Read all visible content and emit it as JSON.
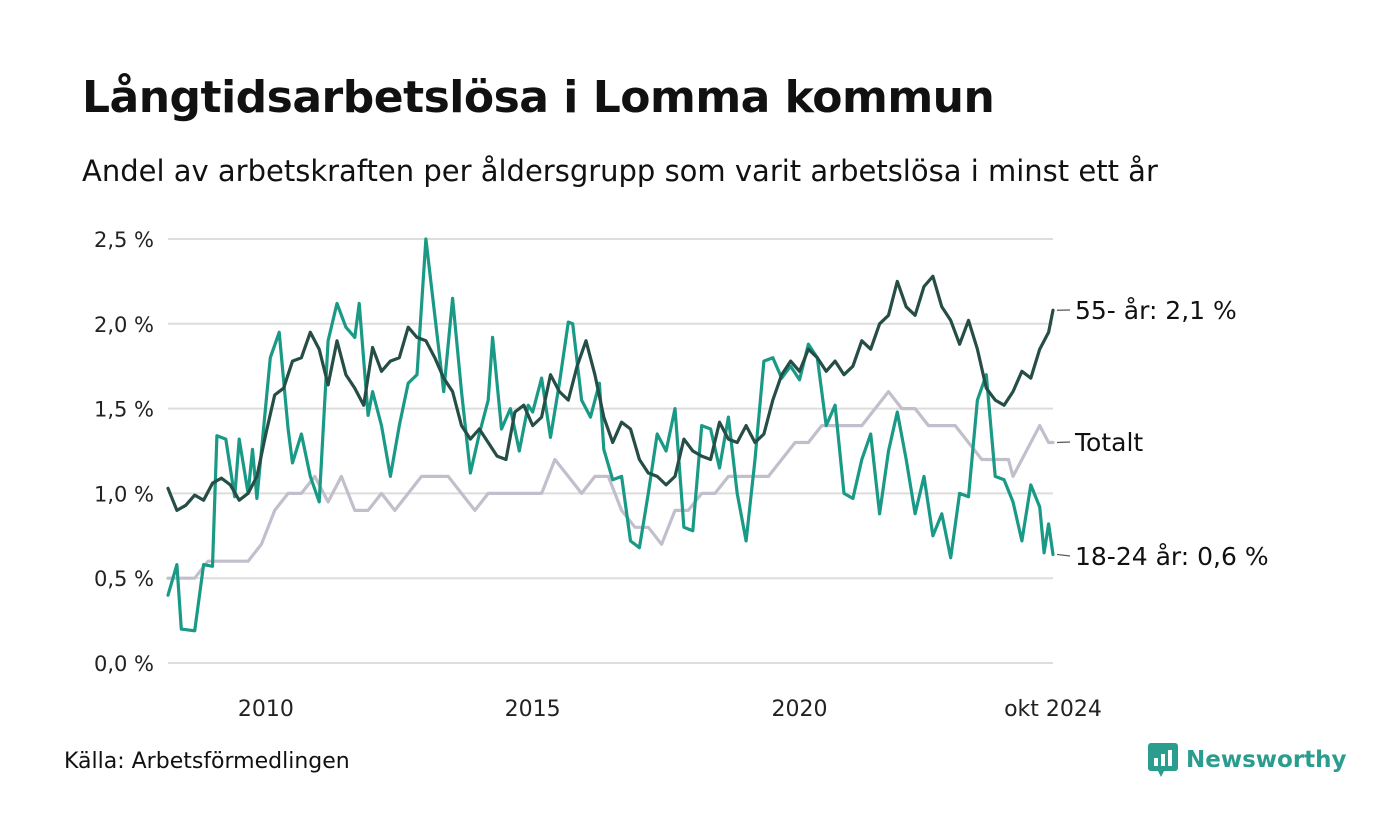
{
  "title": "Långtidsarbetslösa i Lomma kommun",
  "subtitle": "Andel av arbetskraften per åldersgrupp som varit arbetslösa i minst ett år",
  "source": "Källa: Arbetsförmedlingen",
  "brand": "Newsworthy",
  "colors": {
    "s55": "#264d46",
    "s1824": "#1a9a86",
    "total": "#c2bfcc",
    "brand": "#2a9d8f",
    "grid": "#dddddd"
  },
  "chart_data": {
    "type": "line",
    "x_start": "2008-03",
    "x_end": "2024-10",
    "ylim": [
      0,
      2.5
    ],
    "y_ticks": [
      {
        "value": 0.0,
        "label": "0,0 %"
      },
      {
        "value": 0.5,
        "label": "0,5 %"
      },
      {
        "value": 1.0,
        "label": "1,0 %"
      },
      {
        "value": 1.5,
        "label": "1,5 %"
      },
      {
        "value": 2.0,
        "label": "2,0 %"
      },
      {
        "value": 2.5,
        "label": "2,5 %"
      }
    ],
    "x_ticks": [
      {
        "date": "2010-01",
        "label": "2010"
      },
      {
        "date": "2015-01",
        "label": "2015"
      },
      {
        "date": "2020-01",
        "label": "2020"
      },
      {
        "date": "2024-10",
        "label": "okt 2024"
      }
    ],
    "grid": true,
    "series": [
      {
        "key": "s55",
        "end_label": "55- år: 2,1 %",
        "points": [
          [
            "2008-03",
            1.03
          ],
          [
            "2008-05",
            0.9
          ],
          [
            "2008-07",
            0.93
          ],
          [
            "2008-09",
            0.99
          ],
          [
            "2008-11",
            0.96
          ],
          [
            "2009-01",
            1.06
          ],
          [
            "2009-03",
            1.09
          ],
          [
            "2009-05",
            1.05
          ],
          [
            "2009-07",
            0.96
          ],
          [
            "2009-09",
            1.0
          ],
          [
            "2009-11",
            1.1
          ],
          [
            "2010-01",
            1.35
          ],
          [
            "2010-03",
            1.58
          ],
          [
            "2010-05",
            1.62
          ],
          [
            "2010-07",
            1.78
          ],
          [
            "2010-09",
            1.8
          ],
          [
            "2010-11",
            1.95
          ],
          [
            "2011-01",
            1.85
          ],
          [
            "2011-03",
            1.64
          ],
          [
            "2011-05",
            1.9
          ],
          [
            "2011-07",
            1.7
          ],
          [
            "2011-09",
            1.62
          ],
          [
            "2011-11",
            1.52
          ],
          [
            "2012-01",
            1.86
          ],
          [
            "2012-03",
            1.72
          ],
          [
            "2012-05",
            1.78
          ],
          [
            "2012-07",
            1.8
          ],
          [
            "2012-09",
            1.98
          ],
          [
            "2012-11",
            1.92
          ],
          [
            "2013-01",
            1.9
          ],
          [
            "2013-03",
            1.8
          ],
          [
            "2013-05",
            1.68
          ],
          [
            "2013-07",
            1.6
          ],
          [
            "2013-09",
            1.4
          ],
          [
            "2013-11",
            1.32
          ],
          [
            "2014-01",
            1.38
          ],
          [
            "2014-03",
            1.3
          ],
          [
            "2014-05",
            1.22
          ],
          [
            "2014-07",
            1.2
          ],
          [
            "2014-09",
            1.48
          ],
          [
            "2014-11",
            1.52
          ],
          [
            "2015-01",
            1.4
          ],
          [
            "2015-03",
            1.45
          ],
          [
            "2015-05",
            1.7
          ],
          [
            "2015-07",
            1.6
          ],
          [
            "2015-09",
            1.55
          ],
          [
            "2015-11",
            1.75
          ],
          [
            "2016-01",
            1.9
          ],
          [
            "2016-03",
            1.7
          ],
          [
            "2016-05",
            1.45
          ],
          [
            "2016-07",
            1.3
          ],
          [
            "2016-09",
            1.42
          ],
          [
            "2016-11",
            1.38
          ],
          [
            "2017-01",
            1.2
          ],
          [
            "2017-03",
            1.12
          ],
          [
            "2017-05",
            1.1
          ],
          [
            "2017-07",
            1.05
          ],
          [
            "2017-09",
            1.1
          ],
          [
            "2017-11",
            1.32
          ],
          [
            "2018-01",
            1.25
          ],
          [
            "2018-03",
            1.22
          ],
          [
            "2018-05",
            1.2
          ],
          [
            "2018-07",
            1.42
          ],
          [
            "2018-09",
            1.32
          ],
          [
            "2018-11",
            1.3
          ],
          [
            "2019-01",
            1.4
          ],
          [
            "2019-03",
            1.3
          ],
          [
            "2019-05",
            1.35
          ],
          [
            "2019-07",
            1.55
          ],
          [
            "2019-09",
            1.7
          ],
          [
            "2019-11",
            1.78
          ],
          [
            "2020-01",
            1.72
          ],
          [
            "2020-03",
            1.85
          ],
          [
            "2020-05",
            1.8
          ],
          [
            "2020-07",
            1.72
          ],
          [
            "2020-09",
            1.78
          ],
          [
            "2020-11",
            1.7
          ],
          [
            "2021-01",
            1.75
          ],
          [
            "2021-03",
            1.9
          ],
          [
            "2021-05",
            1.85
          ],
          [
            "2021-07",
            2.0
          ],
          [
            "2021-09",
            2.05
          ],
          [
            "2021-11",
            2.25
          ],
          [
            "2022-01",
            2.1
          ],
          [
            "2022-03",
            2.05
          ],
          [
            "2022-05",
            2.22
          ],
          [
            "2022-07",
            2.28
          ],
          [
            "2022-09",
            2.1
          ],
          [
            "2022-11",
            2.02
          ],
          [
            "2023-01",
            1.88
          ],
          [
            "2023-03",
            2.02
          ],
          [
            "2023-05",
            1.85
          ],
          [
            "2023-07",
            1.62
          ],
          [
            "2023-09",
            1.55
          ],
          [
            "2023-11",
            1.52
          ],
          [
            "2024-01",
            1.6
          ],
          [
            "2024-03",
            1.72
          ],
          [
            "2024-05",
            1.68
          ],
          [
            "2024-07",
            1.85
          ],
          [
            "2024-09",
            1.95
          ],
          [
            "2024-10",
            2.08
          ]
        ]
      },
      {
        "key": "s1824",
        "end_label": "18-24 år: 0,6 %",
        "points": [
          [
            "2008-03",
            0.4
          ],
          [
            "2008-05",
            0.58
          ],
          [
            "2008-06",
            0.2
          ],
          [
            "2008-09",
            0.19
          ],
          [
            "2008-11",
            0.58
          ],
          [
            "2009-01",
            0.57
          ],
          [
            "2009-02",
            1.34
          ],
          [
            "2009-04",
            1.32
          ],
          [
            "2009-06",
            0.98
          ],
          [
            "2009-07",
            1.32
          ],
          [
            "2009-09",
            1.0
          ],
          [
            "2009-10",
            1.26
          ],
          [
            "2009-11",
            0.97
          ],
          [
            "2010-02",
            1.8
          ],
          [
            "2010-04",
            1.95
          ],
          [
            "2010-06",
            1.38
          ],
          [
            "2010-07",
            1.18
          ],
          [
            "2010-09",
            1.35
          ],
          [
            "2010-11",
            1.1
          ],
          [
            "2011-01",
            0.95
          ],
          [
            "2011-03",
            1.9
          ],
          [
            "2011-05",
            2.12
          ],
          [
            "2011-07",
            1.98
          ],
          [
            "2011-09",
            1.92
          ],
          [
            "2011-10",
            2.12
          ],
          [
            "2011-12",
            1.46
          ],
          [
            "2012-01",
            1.6
          ],
          [
            "2012-03",
            1.4
          ],
          [
            "2012-05",
            1.1
          ],
          [
            "2012-07",
            1.4
          ],
          [
            "2012-09",
            1.65
          ],
          [
            "2012-11",
            1.7
          ],
          [
            "2013-01",
            2.5
          ],
          [
            "2013-03",
            2.05
          ],
          [
            "2013-05",
            1.6
          ],
          [
            "2013-07",
            2.15
          ],
          [
            "2013-09",
            1.6
          ],
          [
            "2013-11",
            1.12
          ],
          [
            "2014-01",
            1.35
          ],
          [
            "2014-03",
            1.55
          ],
          [
            "2014-04",
            1.92
          ],
          [
            "2014-06",
            1.38
          ],
          [
            "2014-08",
            1.5
          ],
          [
            "2014-10",
            1.25
          ],
          [
            "2014-12",
            1.52
          ],
          [
            "2015-01",
            1.48
          ],
          [
            "2015-03",
            1.68
          ],
          [
            "2015-05",
            1.33
          ],
          [
            "2015-07",
            1.65
          ],
          [
            "2015-09",
            2.01
          ],
          [
            "2015-10",
            2.0
          ],
          [
            "2015-12",
            1.55
          ],
          [
            "2016-02",
            1.45
          ],
          [
            "2016-04",
            1.65
          ],
          [
            "2016-05",
            1.26
          ],
          [
            "2016-07",
            1.08
          ],
          [
            "2016-09",
            1.1
          ],
          [
            "2016-11",
            0.72
          ],
          [
            "2017-01",
            0.68
          ],
          [
            "2017-03",
            1.0
          ],
          [
            "2017-05",
            1.35
          ],
          [
            "2017-07",
            1.25
          ],
          [
            "2017-09",
            1.5
          ],
          [
            "2017-11",
            0.8
          ],
          [
            "2018-01",
            0.78
          ],
          [
            "2018-03",
            1.4
          ],
          [
            "2018-05",
            1.38
          ],
          [
            "2018-07",
            1.15
          ],
          [
            "2018-09",
            1.45
          ],
          [
            "2018-11",
            1.0
          ],
          [
            "2019-01",
            0.72
          ],
          [
            "2019-03",
            1.2
          ],
          [
            "2019-05",
            1.78
          ],
          [
            "2019-07",
            1.8
          ],
          [
            "2019-09",
            1.68
          ],
          [
            "2019-11",
            1.75
          ],
          [
            "2020-01",
            1.67
          ],
          [
            "2020-03",
            1.88
          ],
          [
            "2020-05",
            1.8
          ],
          [
            "2020-07",
            1.4
          ],
          [
            "2020-09",
            1.52
          ],
          [
            "2020-11",
            1.0
          ],
          [
            "2021-01",
            0.97
          ],
          [
            "2021-03",
            1.2
          ],
          [
            "2021-05",
            1.35
          ],
          [
            "2021-07",
            0.88
          ],
          [
            "2021-09",
            1.25
          ],
          [
            "2021-11",
            1.48
          ],
          [
            "2022-01",
            1.2
          ],
          [
            "2022-03",
            0.88
          ],
          [
            "2022-05",
            1.1
          ],
          [
            "2022-07",
            0.75
          ],
          [
            "2022-09",
            0.88
          ],
          [
            "2022-11",
            0.62
          ],
          [
            "2023-01",
            1.0
          ],
          [
            "2023-03",
            0.98
          ],
          [
            "2023-05",
            1.55
          ],
          [
            "2023-07",
            1.7
          ],
          [
            "2023-09",
            1.1
          ],
          [
            "2023-11",
            1.08
          ],
          [
            "2024-01",
            0.95
          ],
          [
            "2024-03",
            0.72
          ],
          [
            "2024-05",
            1.05
          ],
          [
            "2024-07",
            0.92
          ],
          [
            "2024-08",
            0.65
          ],
          [
            "2024-09",
            0.82
          ],
          [
            "2024-10",
            0.64
          ]
        ]
      },
      {
        "key": "total",
        "end_label": "Totalt",
        "points": [
          [
            "2008-03",
            0.5
          ],
          [
            "2008-06",
            0.5
          ],
          [
            "2008-09",
            0.5
          ],
          [
            "2008-12",
            0.6
          ],
          [
            "2009-06",
            0.6
          ],
          [
            "2009-09",
            0.6
          ],
          [
            "2009-12",
            0.7
          ],
          [
            "2010-03",
            0.9
          ],
          [
            "2010-06",
            1.0
          ],
          [
            "2010-09",
            1.0
          ],
          [
            "2010-12",
            1.1
          ],
          [
            "2011-03",
            0.95
          ],
          [
            "2011-06",
            1.1
          ],
          [
            "2011-09",
            0.9
          ],
          [
            "2011-12",
            0.9
          ],
          [
            "2012-03",
            1.0
          ],
          [
            "2012-06",
            0.9
          ],
          [
            "2012-09",
            1.0
          ],
          [
            "2012-12",
            1.1
          ],
          [
            "2013-03",
            1.1
          ],
          [
            "2013-06",
            1.1
          ],
          [
            "2013-09",
            1.0
          ],
          [
            "2013-12",
            0.9
          ],
          [
            "2014-03",
            1.0
          ],
          [
            "2014-06",
            1.0
          ],
          [
            "2014-09",
            1.0
          ],
          [
            "2014-12",
            1.0
          ],
          [
            "2015-03",
            1.0
          ],
          [
            "2015-06",
            1.2
          ],
          [
            "2015-09",
            1.1
          ],
          [
            "2015-12",
            1.0
          ],
          [
            "2016-03",
            1.1
          ],
          [
            "2016-06",
            1.1
          ],
          [
            "2016-09",
            0.9
          ],
          [
            "2016-12",
            0.8
          ],
          [
            "2017-03",
            0.8
          ],
          [
            "2017-06",
            0.7
          ],
          [
            "2017-09",
            0.9
          ],
          [
            "2017-12",
            0.9
          ],
          [
            "2018-03",
            1.0
          ],
          [
            "2018-06",
            1.0
          ],
          [
            "2018-09",
            1.1
          ],
          [
            "2018-12",
            1.1
          ],
          [
            "2019-03",
            1.1
          ],
          [
            "2019-06",
            1.1
          ],
          [
            "2019-09",
            1.2
          ],
          [
            "2019-12",
            1.3
          ],
          [
            "2020-03",
            1.3
          ],
          [
            "2020-06",
            1.4
          ],
          [
            "2020-09",
            1.4
          ],
          [
            "2020-12",
            1.4
          ],
          [
            "2021-03",
            1.4
          ],
          [
            "2021-06",
            1.5
          ],
          [
            "2021-09",
            1.6
          ],
          [
            "2021-12",
            1.5
          ],
          [
            "2022-03",
            1.5
          ],
          [
            "2022-06",
            1.4
          ],
          [
            "2022-09",
            1.4
          ],
          [
            "2022-12",
            1.4
          ],
          [
            "2023-03",
            1.3
          ],
          [
            "2023-06",
            1.2
          ],
          [
            "2023-09",
            1.2
          ],
          [
            "2023-12",
            1.2
          ],
          [
            "2024-01",
            1.1
          ],
          [
            "2024-03",
            1.2
          ],
          [
            "2024-05",
            1.3
          ],
          [
            "2024-07",
            1.4
          ],
          [
            "2024-09",
            1.3
          ],
          [
            "2024-10",
            1.3
          ]
        ]
      }
    ]
  }
}
